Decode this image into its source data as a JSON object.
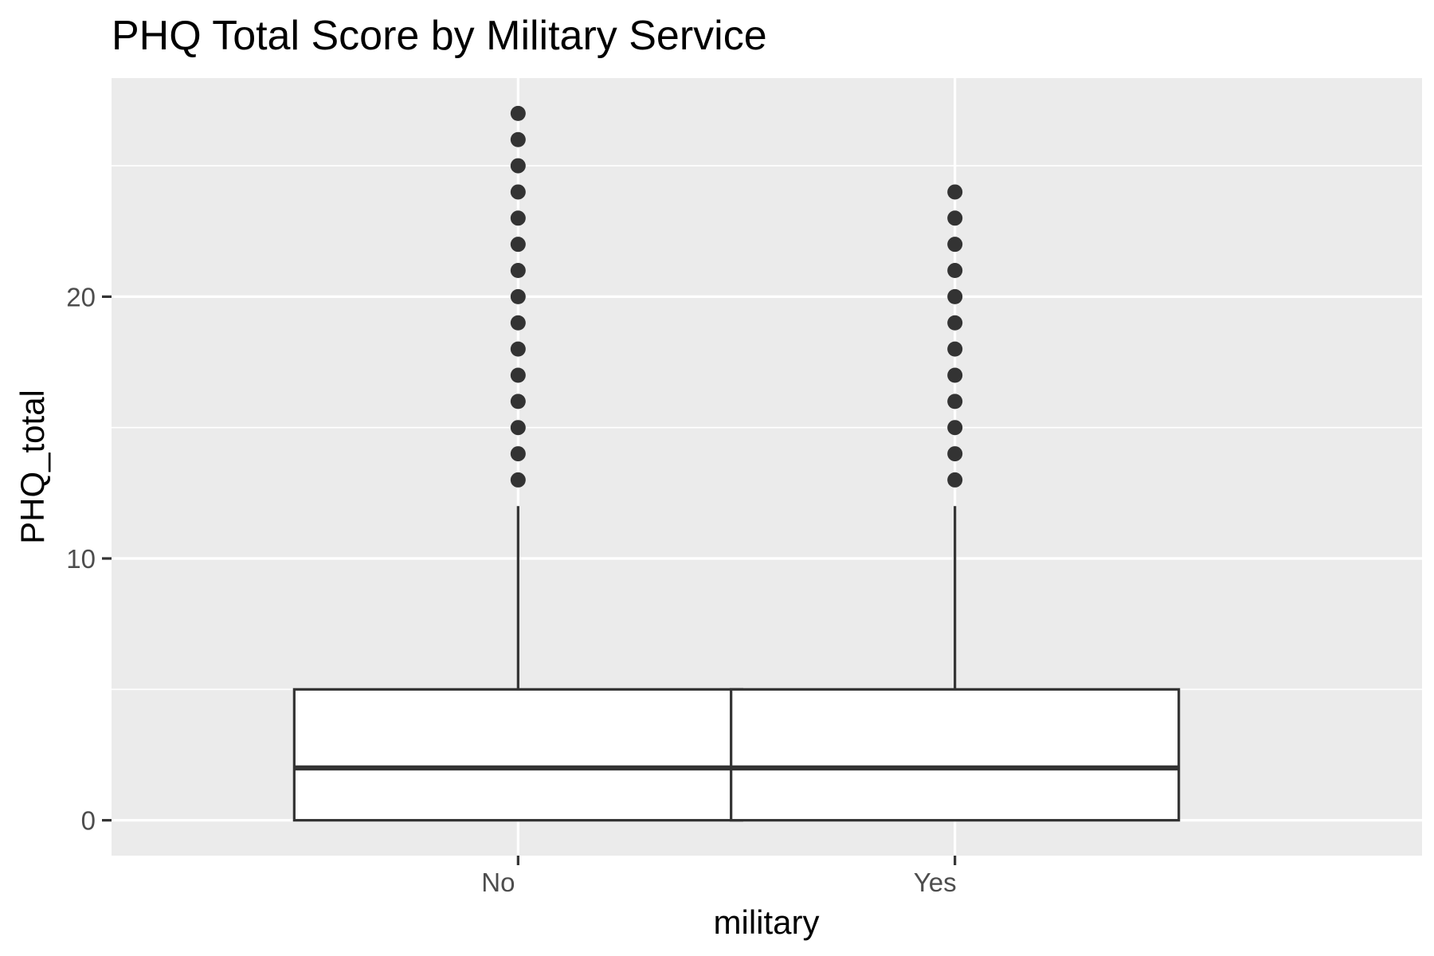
{
  "chart_data": {
    "type": "boxplot",
    "title": "PHQ Total Score by Military Service",
    "xlabel": "military",
    "ylabel": "PHQ_total",
    "categories": [
      "No",
      "Yes"
    ],
    "boxes": [
      {
        "category": "No",
        "lower_whisker": 0,
        "q1": 0,
        "median": 2,
        "q3": 5,
        "upper_whisker": 12,
        "outliers": [
          13,
          14,
          15,
          16,
          17,
          18,
          19,
          20,
          21,
          22,
          23,
          24,
          25,
          26,
          27
        ]
      },
      {
        "category": "Yes",
        "lower_whisker": 0,
        "q1": 0,
        "median": 2,
        "q3": 5,
        "upper_whisker": 12,
        "outliers": [
          13,
          14,
          15,
          16,
          17,
          18,
          19,
          20,
          21,
          22,
          23,
          24
        ]
      }
    ],
    "y_ticks": [
      0,
      10,
      20
    ],
    "ylim": [
      -1.35,
      28.35
    ],
    "grid": true,
    "colors": {
      "panel": "#ebebeb",
      "grid": "#ffffff",
      "box_fill": "#ffffff",
      "box_stroke": "#333333",
      "outlier": "#333333",
      "tick_label": "#4d4d4d",
      "tick_mark": "#333333"
    }
  }
}
